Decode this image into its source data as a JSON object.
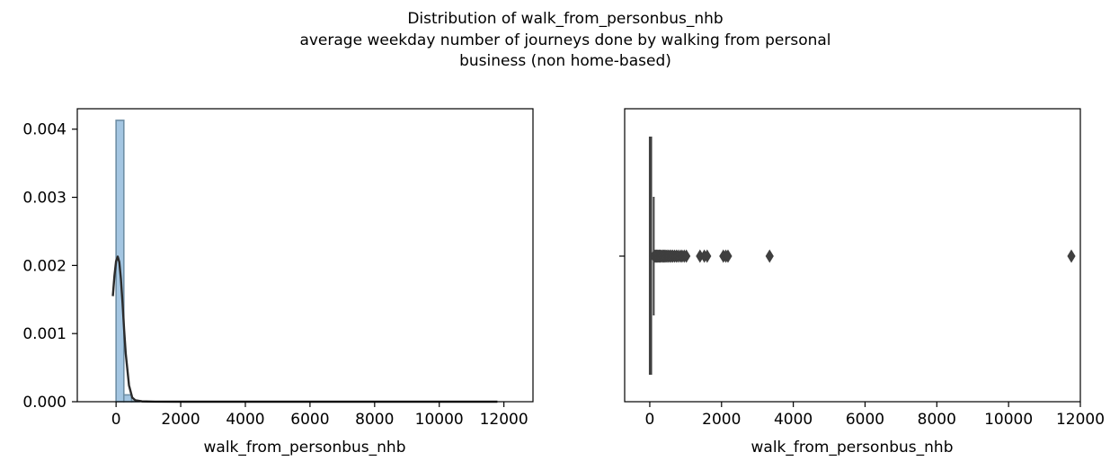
{
  "figure": {
    "suptitle_lines": [
      "Distribution of walk_from_personbus_nhb",
      "average weekday number of journeys done by walking from personal",
      "business (non home-based)"
    ]
  },
  "chart_data": [
    {
      "type": "histogram",
      "title": "",
      "xlabel": "walk_from_personbus_nhb",
      "ylabel": "",
      "xlim": [
        -1200,
        12900
      ],
      "ylim": [
        0,
        0.0043
      ],
      "xticks": [
        0,
        2000,
        4000,
        6000,
        8000,
        10000,
        12000
      ],
      "yticks": [
        0.0,
        0.001,
        0.002,
        0.003,
        0.004
      ],
      "xtick_labels": [
        "0",
        "2000",
        "4000",
        "6000",
        "8000",
        "10000",
        "12000"
      ],
      "ytick_labels": [
        "0.000",
        "0.001",
        "0.002",
        "0.003",
        "0.004"
      ],
      "bins": [
        {
          "x0": 0,
          "x1": 240,
          "density": 0.00413
        },
        {
          "x0": 240,
          "x1": 480,
          "density": 0.0001
        },
        {
          "x0": 480,
          "x1": 720,
          "density": 1e-05
        }
      ],
      "kde_curve": {
        "x": [
          -100,
          -50,
          0,
          50,
          100,
          150,
          200,
          250,
          300,
          400,
          500,
          600,
          800,
          1200,
          2000,
          4000,
          8000,
          11800
        ],
        "y": [
          0.00155,
          0.00185,
          0.00206,
          0.00213,
          0.00205,
          0.0018,
          0.00145,
          0.00105,
          0.0007,
          0.00024,
          6e-05,
          2e-05,
          5e-06,
          1e-06,
          0,
          0,
          0,
          0
        ]
      },
      "colors": {
        "bar": "#a4c6e2",
        "bar_edge": "#6f8fa6",
        "kde": "#2b2b2b"
      },
      "grid": false
    },
    {
      "type": "boxplot",
      "title": "",
      "xlabel": "walk_from_personbus_nhb",
      "ylabel": "",
      "xlim": [
        -700,
        12000
      ],
      "xticks": [
        0,
        2000,
        4000,
        6000,
        8000,
        10000,
        12000
      ],
      "xtick_labels": [
        "0",
        "2000",
        "4000",
        "6000",
        "8000",
        "10000",
        "12000"
      ],
      "box": {
        "q1": 0,
        "median": 5,
        "q3": 40,
        "whisker_low": 0,
        "whisker_high": 110
      },
      "outliers": [
        120,
        140,
        160,
        180,
        200,
        220,
        240,
        260,
        280,
        300,
        330,
        360,
        390,
        420,
        450,
        480,
        520,
        560,
        600,
        640,
        690,
        740,
        790,
        850,
        900,
        960,
        1020,
        1400,
        1520,
        1600,
        2050,
        2120,
        2180,
        3340,
        11750
      ],
      "colors": {
        "box_fill": "#4d6a8a",
        "line": "#3f3f3f"
      },
      "grid": false
    }
  ]
}
